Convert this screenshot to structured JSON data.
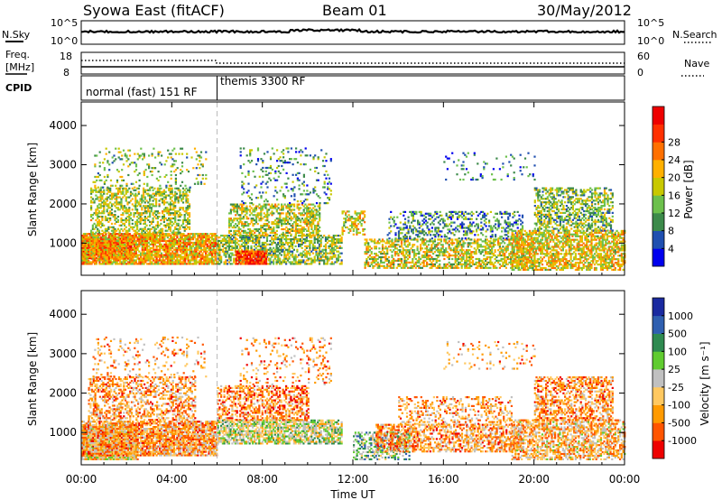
{
  "header": {
    "station": "Syowa East (fitACF)",
    "beam": "Beam 01",
    "date": "30/May/2012"
  },
  "top_panels": {
    "nsky_label": "N.Sky",
    "nsky_ticks": [
      "10^5",
      "10^0"
    ],
    "nsearch_label": "N.Search",
    "nsearch_ticks": [
      "10^5",
      "10^0"
    ],
    "freq_label_line1": "Freq.",
    "freq_label_line2": "[MHz]",
    "freq_ticks": [
      "18",
      "8"
    ],
    "nave_label": "Nave",
    "nave_ticks": [
      "60",
      "0"
    ],
    "cpid_label": "CPID",
    "cpid_modes": [
      {
        "name": "normal (fast) 151 RF",
        "start_hour": 0,
        "end_hour": 6
      },
      {
        "name": "themis 3300 RF",
        "start_hour": 6,
        "end_hour": 24
      }
    ]
  },
  "x_axis": {
    "label": "Time UT",
    "ticks": [
      "00:00",
      "04:00",
      "08:00",
      "12:00",
      "16:00",
      "20:00",
      "00:00"
    ],
    "range_hours": [
      0,
      24
    ]
  },
  "colors": {
    "power": [
      "#0000ee",
      "#1f4fb0",
      "#3c8a4a",
      "#6cc04c",
      "#c8c800",
      "#ffb000",
      "#ff7000",
      "#ff3000",
      "#ee0000"
    ],
    "velocity": [
      "#ee0000",
      "#ff5500",
      "#ff9a00",
      "#ffc860",
      "#c0c0c0",
      "#60cc30",
      "#2e8a50",
      "#2f5fb0",
      "#1a2aa0"
    ]
  },
  "chart_data": [
    {
      "type": "heatmap",
      "panel": "power",
      "ylabel": "Slant Range [km]",
      "yticks": [
        "1000",
        "2000",
        "3000",
        "4000"
      ],
      "ylim_km": [
        180,
        4600
      ],
      "xlim_hours": [
        0,
        24
      ],
      "colorbar": {
        "label": "Power [dB]",
        "ticks": [
          "4",
          "8",
          "12",
          "16",
          "20",
          "24",
          "28"
        ],
        "range": [
          0,
          32
        ]
      },
      "regions": [
        {
          "t0": 0,
          "t1": 2.2,
          "r0": 600,
          "r1": 1100,
          "level": 0.82,
          "density": 0.95
        },
        {
          "t0": 0,
          "t1": 6,
          "r0": 450,
          "r1": 1250,
          "level": 0.62,
          "density": 0.85
        },
        {
          "t0": 0.4,
          "t1": 4.8,
          "r0": 1250,
          "r1": 2400,
          "level": 0.45,
          "density": 0.5
        },
        {
          "t0": 0.5,
          "t1": 5.5,
          "r0": 2400,
          "r1": 3400,
          "level": 0.4,
          "density": 0.12
        },
        {
          "t0": 6,
          "t1": 11.5,
          "r0": 450,
          "r1": 1200,
          "level": 0.42,
          "density": 0.6
        },
        {
          "t0": 6.8,
          "t1": 8.2,
          "r0": 450,
          "r1": 800,
          "level": 0.85,
          "density": 0.9
        },
        {
          "t0": 6.5,
          "t1": 10.5,
          "r0": 1200,
          "r1": 2000,
          "level": 0.48,
          "density": 0.55
        },
        {
          "t0": 7,
          "t1": 11,
          "r0": 2000,
          "r1": 3400,
          "level": 0.3,
          "density": 0.14
        },
        {
          "t0": 11.5,
          "t1": 12.5,
          "r0": 1200,
          "r1": 1800,
          "level": 0.55,
          "density": 0.5
        },
        {
          "t0": 12.5,
          "t1": 20,
          "r0": 350,
          "r1": 1100,
          "level": 0.5,
          "density": 0.55
        },
        {
          "t0": 13.5,
          "t1": 19.5,
          "r0": 1100,
          "r1": 1800,
          "level": 0.28,
          "density": 0.3
        },
        {
          "t0": 16,
          "t1": 20,
          "r0": 2600,
          "r1": 3300,
          "level": 0.22,
          "density": 0.1
        },
        {
          "t0": 19,
          "t1": 24,
          "r0": 300,
          "r1": 1300,
          "level": 0.55,
          "density": 0.62
        },
        {
          "t0": 20,
          "t1": 23.5,
          "r0": 1300,
          "r1": 2400,
          "level": 0.4,
          "density": 0.5
        }
      ]
    },
    {
      "type": "heatmap",
      "panel": "velocity",
      "ylabel": "Slant Range [km]",
      "yticks": [
        "1000",
        "2000",
        "3000",
        "4000"
      ],
      "ylim_km": [
        180,
        4600
      ],
      "xlim_hours": [
        0,
        24
      ],
      "colorbar": {
        "label": "Velocity [m s⁻¹]",
        "ticks": [
          "-1000",
          "-500",
          "-100",
          "-25",
          "25",
          "100",
          "500",
          "1000"
        ],
        "range": [
          -1200,
          1200
        ]
      },
      "regions": [
        {
          "t0": 0,
          "t1": 2.5,
          "r0": 300,
          "r1": 1200,
          "level": 0.42,
          "density": 0.9
        },
        {
          "t0": 0,
          "t1": 6,
          "r0": 400,
          "r1": 1300,
          "level": 0.3,
          "density": 0.8
        },
        {
          "t0": 0.3,
          "t1": 5,
          "r0": 1300,
          "r1": 2400,
          "level": 0.3,
          "density": 0.45
        },
        {
          "t0": 0.5,
          "t1": 5.5,
          "r0": 2400,
          "r1": 3400,
          "level": 0.3,
          "density": 0.12
        },
        {
          "t0": 6,
          "t1": 11.5,
          "r0": 700,
          "r1": 1300,
          "level": 0.5,
          "density": 0.7
        },
        {
          "t0": 6,
          "t1": 10,
          "r0": 1300,
          "r1": 2200,
          "level": 0.25,
          "density": 0.5
        },
        {
          "t0": 7,
          "t1": 11,
          "r0": 2200,
          "r1": 3400,
          "level": 0.28,
          "density": 0.14
        },
        {
          "t0": 12,
          "t1": 14.5,
          "r0": 300,
          "r1": 1000,
          "level": 0.62,
          "density": 0.45
        },
        {
          "t0": 13,
          "t1": 19.5,
          "r0": 500,
          "r1": 1200,
          "level": 0.3,
          "density": 0.55
        },
        {
          "t0": 14,
          "t1": 19,
          "r0": 1200,
          "r1": 1900,
          "level": 0.3,
          "density": 0.3
        },
        {
          "t0": 16,
          "t1": 20,
          "r0": 2600,
          "r1": 3300,
          "level": 0.3,
          "density": 0.1
        },
        {
          "t0": 19,
          "t1": 24,
          "r0": 300,
          "r1": 1300,
          "level": 0.35,
          "density": 0.6
        },
        {
          "t0": 20,
          "t1": 23.5,
          "r0": 1300,
          "r1": 2400,
          "level": 0.28,
          "density": 0.5
        }
      ]
    }
  ]
}
